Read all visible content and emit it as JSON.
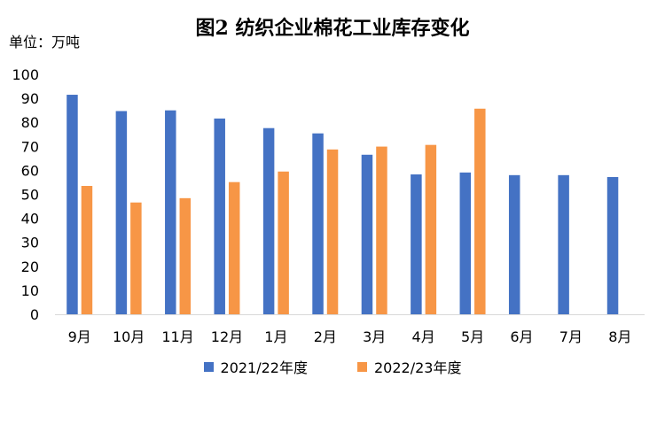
{
  "chart_data": {
    "type": "bar",
    "title": "图2  纺织企业棉花工业库存变化",
    "unit_label": "单位：万吨",
    "categories": [
      "9月",
      "10月",
      "11月",
      "12月",
      "1月",
      "2月",
      "3月",
      "4月",
      "5月",
      "6月",
      "7月",
      "8月"
    ],
    "series": [
      {
        "name": "2021/22年度",
        "color": "#4472C4",
        "values": [
          91.5,
          84.7,
          85.0,
          81.6,
          77.6,
          75.4,
          66.5,
          58.3,
          59.1,
          58.0,
          58.0,
          57.2
        ]
      },
      {
        "name": "2022/23年度",
        "color": "#F79646",
        "values": [
          53.5,
          46.6,
          48.4,
          55.1,
          59.5,
          68.7,
          69.9,
          70.6,
          85.7,
          null,
          null,
          null
        ]
      }
    ],
    "yticks": [
      0,
      10,
      20,
      30,
      40,
      50,
      60,
      70,
      80,
      90,
      100
    ],
    "ylim": [
      0,
      100
    ],
    "grid": false,
    "legend_position": "bottom"
  }
}
